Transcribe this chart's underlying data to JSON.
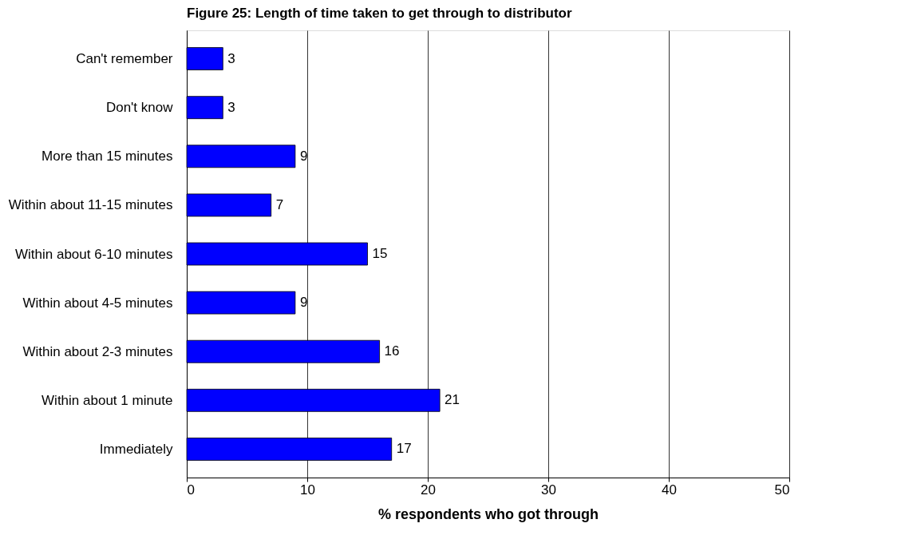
{
  "chart_data": {
    "type": "bar",
    "orientation": "horizontal",
    "title": "Figure 25: Length of time taken to get through to distributor",
    "xlabel": "% respondents who got through",
    "categories": [
      "Can't remember",
      "Don't know",
      "More than 15 minutes",
      "Within about 11-15 minutes",
      "Within about 6-10 minutes",
      "Within about 4-5 minutes",
      "Within about 2-3 minutes",
      "Within about 1 minute",
      "Immediately"
    ],
    "values": [
      3,
      3,
      9,
      7,
      15,
      9,
      16,
      21,
      17
    ],
    "color": "#0000ff",
    "xlim": [
      0,
      50
    ],
    "xticks": [
      0,
      10,
      20,
      30,
      40,
      50
    ],
    "grid": "x",
    "data_labels": true
  }
}
